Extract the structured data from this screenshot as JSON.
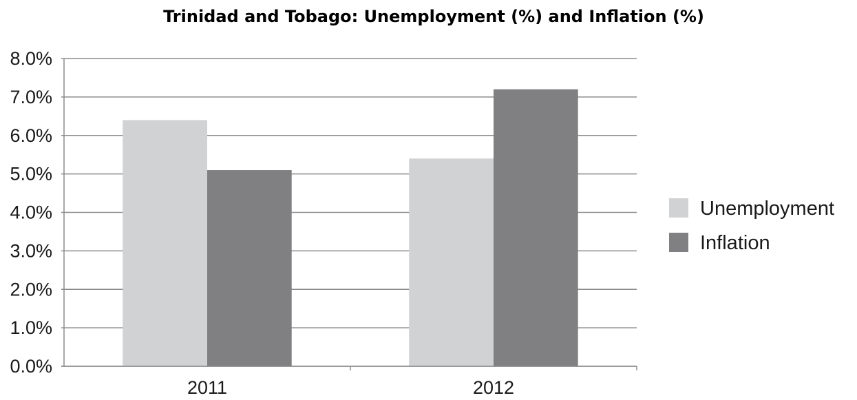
{
  "chart_data": {
    "type": "bar",
    "title": "Trinidad and Tobago: Unemployment (%) and Inflation (%)",
    "categories": [
      "2011",
      "2012"
    ],
    "series": [
      {
        "name": "Unemployment",
        "values": [
          6.4,
          5.4
        ],
        "color": "#d1d2d4"
      },
      {
        "name": "Inflation",
        "values": [
          5.1,
          7.2
        ],
        "color": "#808082"
      }
    ],
    "y_ticks": [
      "0.0%",
      "1.0%",
      "2.0%",
      "3.0%",
      "4.0%",
      "5.0%",
      "6.0%",
      "7.0%",
      "8.0%"
    ],
    "ylim": [
      0,
      8
    ],
    "grid": true,
    "legend_position": "right"
  }
}
